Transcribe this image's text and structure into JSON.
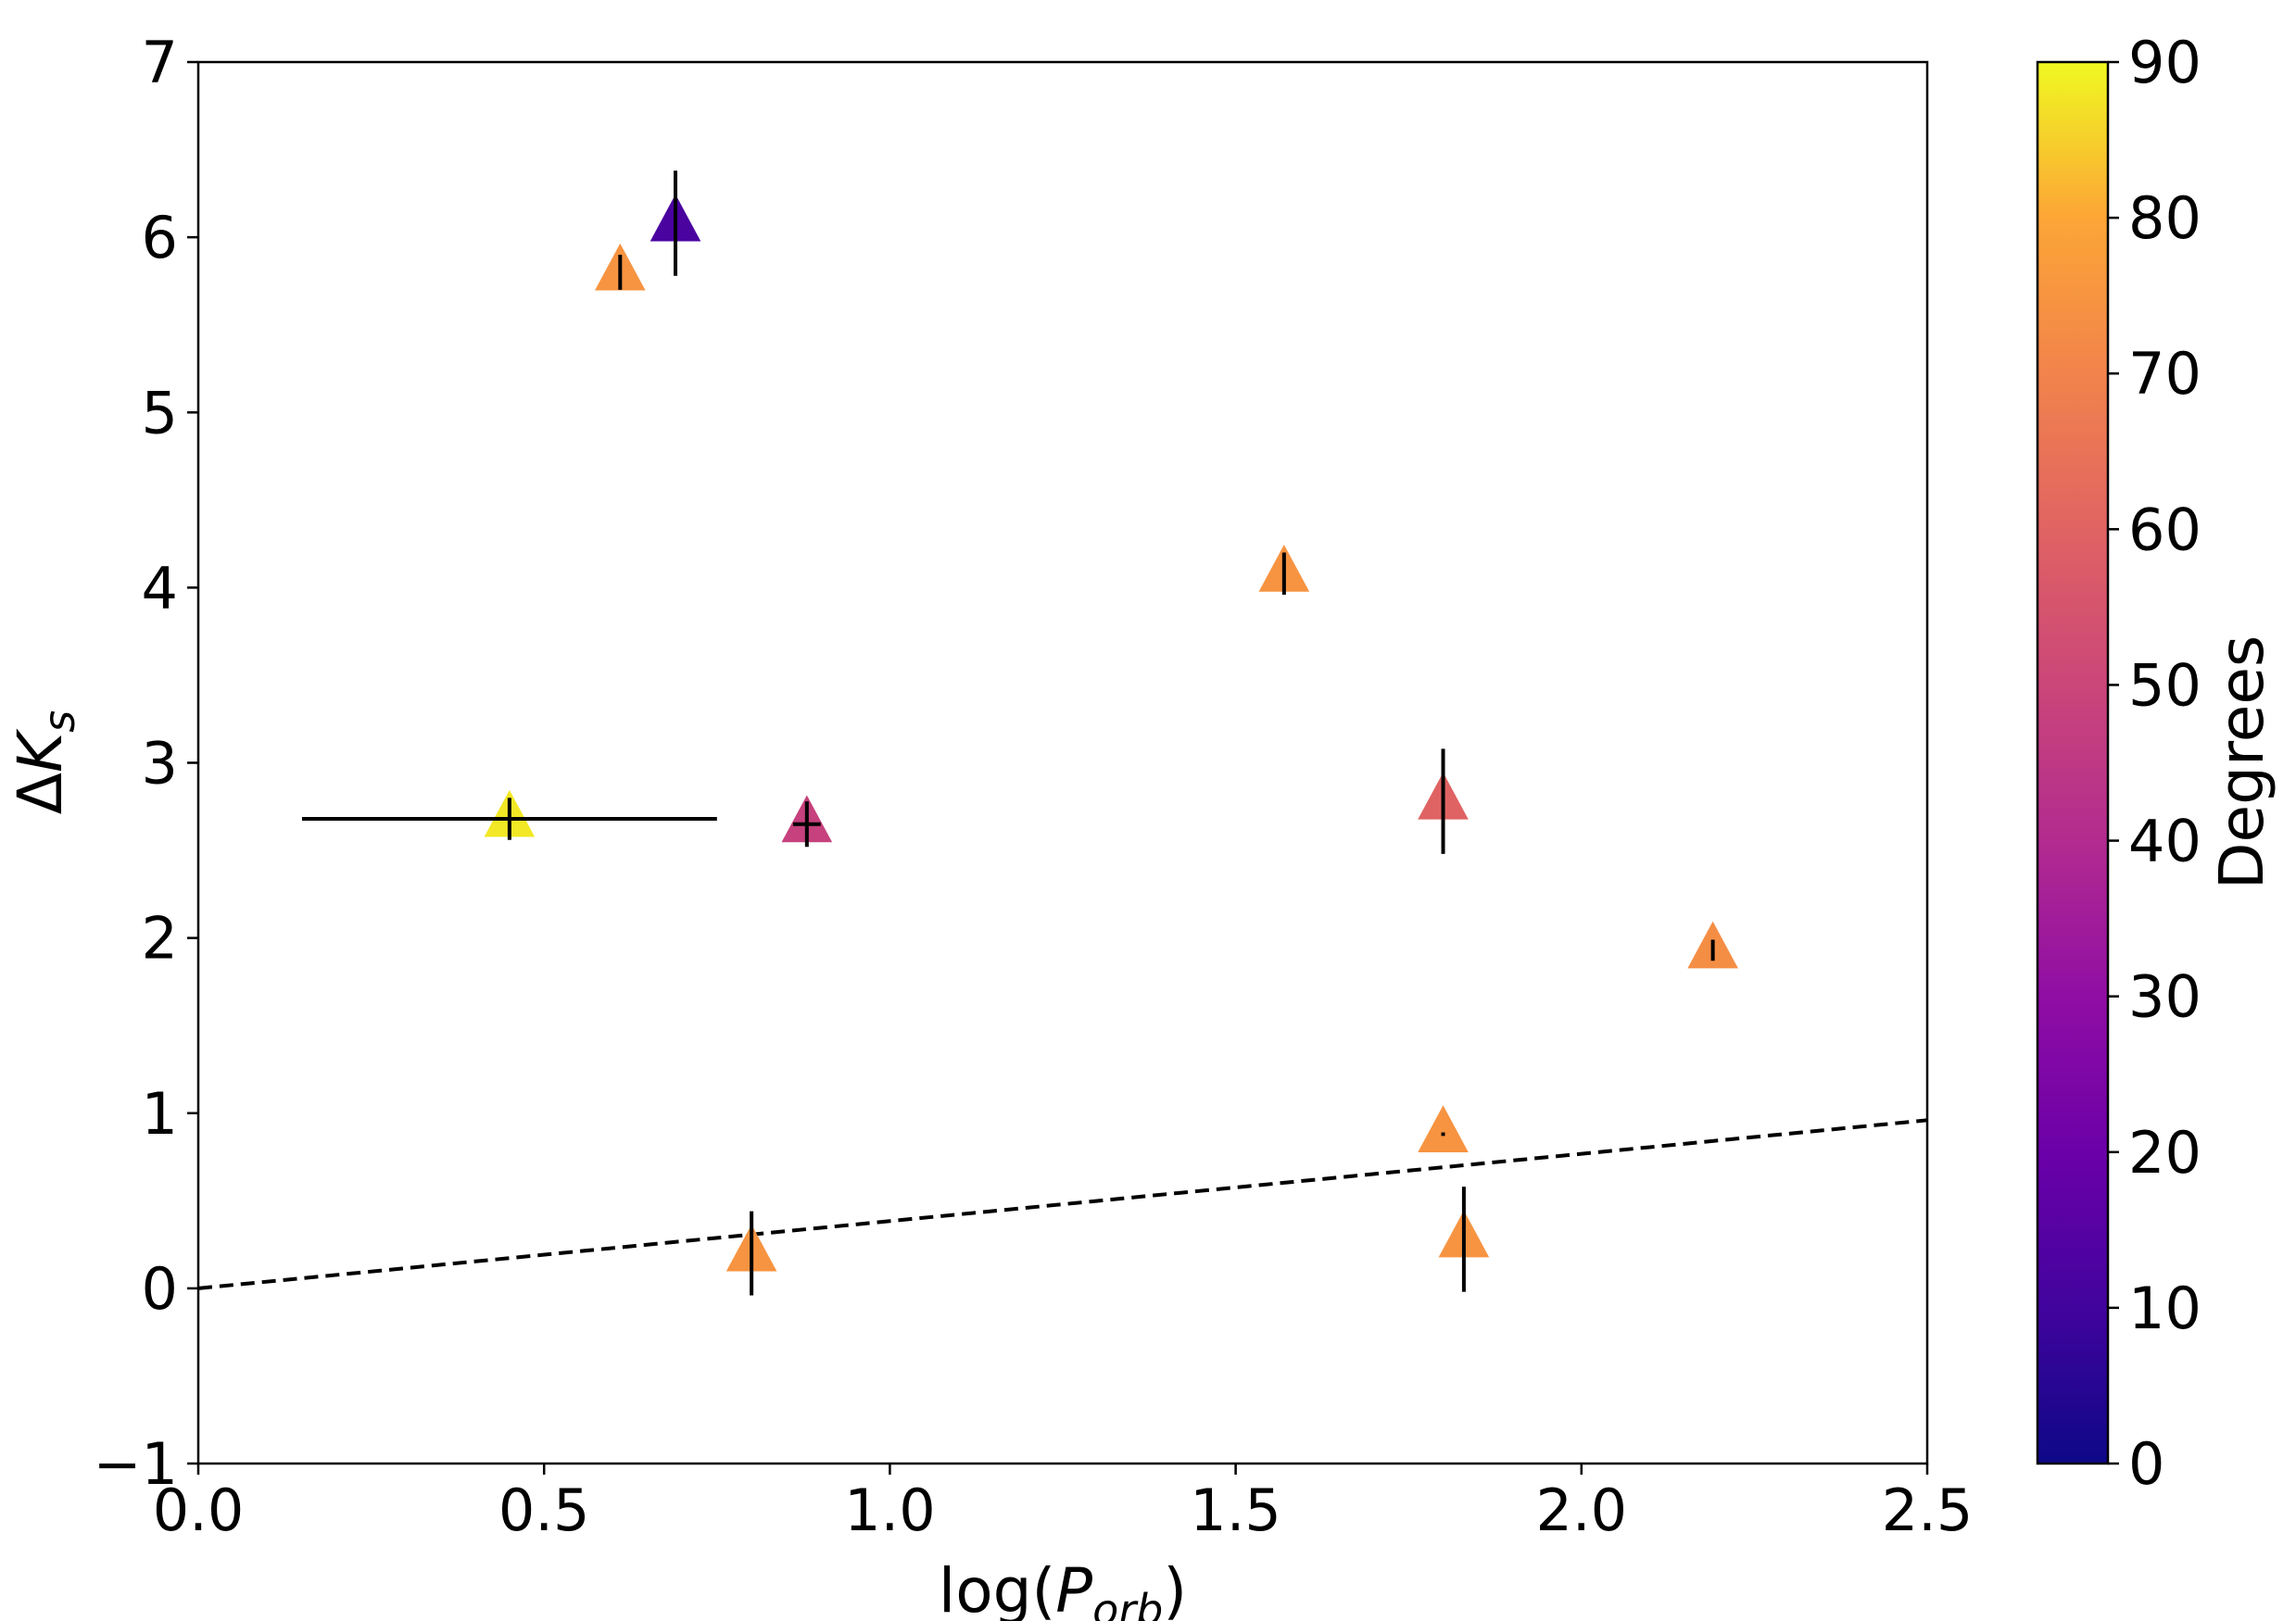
{
  "chart_data": {
    "type": "scatter",
    "title": "",
    "xlabel": "log(P_orb)",
    "xlabel_parts": {
      "prefix": "log(",
      "var": "P",
      "sub": "orb",
      "suffix": ")"
    },
    "ylabel": "ΔK_s",
    "ylabel_parts": {
      "prefix": "Δ",
      "var": "K",
      "sub": "s"
    },
    "xlim": [
      0.0,
      2.5
    ],
    "ylim": [
      -1,
      7
    ],
    "x_ticks": [
      0.0,
      0.5,
      1.0,
      1.5,
      2.0,
      2.5
    ],
    "x_tick_labels": [
      "0.0",
      "0.5",
      "1.0",
      "1.5",
      "2.0",
      "2.5"
    ],
    "y_ticks": [
      -1,
      0,
      1,
      2,
      3,
      4,
      5,
      6,
      7
    ],
    "y_tick_labels": [
      "−1",
      "0",
      "1",
      "2",
      "3",
      "4",
      "5",
      "6",
      "7"
    ],
    "grid": false,
    "marker": "triangle-up",
    "colormap": "plasma",
    "colorbar": {
      "label": "Degrees",
      "range": [
        0,
        90
      ],
      "ticks": [
        0,
        10,
        20,
        30,
        40,
        50,
        60,
        70,
        80,
        90
      ],
      "tick_labels": [
        "0",
        "10",
        "20",
        "30",
        "40",
        "50",
        "60",
        "70",
        "80",
        "90"
      ]
    },
    "points": [
      {
        "x": 0.45,
        "y": 2.68,
        "xerr": 0.3,
        "yerr": 0.12,
        "c": 88
      },
      {
        "x": 0.61,
        "y": 5.8,
        "xerr": 0.0,
        "yerr": 0.1,
        "c": 75
      },
      {
        "x": 0.69,
        "y": 6.08,
        "xerr": 0.0,
        "yerr": 0.3,
        "c": 12
      },
      {
        "x": 0.8,
        "y": 0.2,
        "xerr": 0.0,
        "yerr": 0.24,
        "c": 75
      },
      {
        "x": 0.88,
        "y": 2.65,
        "xerr": 0.02,
        "yerr": 0.13,
        "c": 48
      },
      {
        "x": 1.57,
        "y": 4.08,
        "xerr": 0.0,
        "yerr": 0.12,
        "c": 75
      },
      {
        "x": 1.8,
        "y": 2.78,
        "xerr": 0.0,
        "yerr": 0.3,
        "c": 60
      },
      {
        "x": 1.8,
        "y": 0.88,
        "xerr": 0.0,
        "yerr": 0.01,
        "c": 75
      },
      {
        "x": 1.83,
        "y": 0.28,
        "xerr": 0.0,
        "yerr": 0.3,
        "c": 75
      },
      {
        "x": 2.19,
        "y": 1.93,
        "xerr": 0.0,
        "yerr": 0.06,
        "c": 73
      }
    ],
    "reference_line": {
      "style": "dashed",
      "x": [
        0.0,
        2.5
      ],
      "y": [
        0.0,
        0.96
      ]
    }
  }
}
